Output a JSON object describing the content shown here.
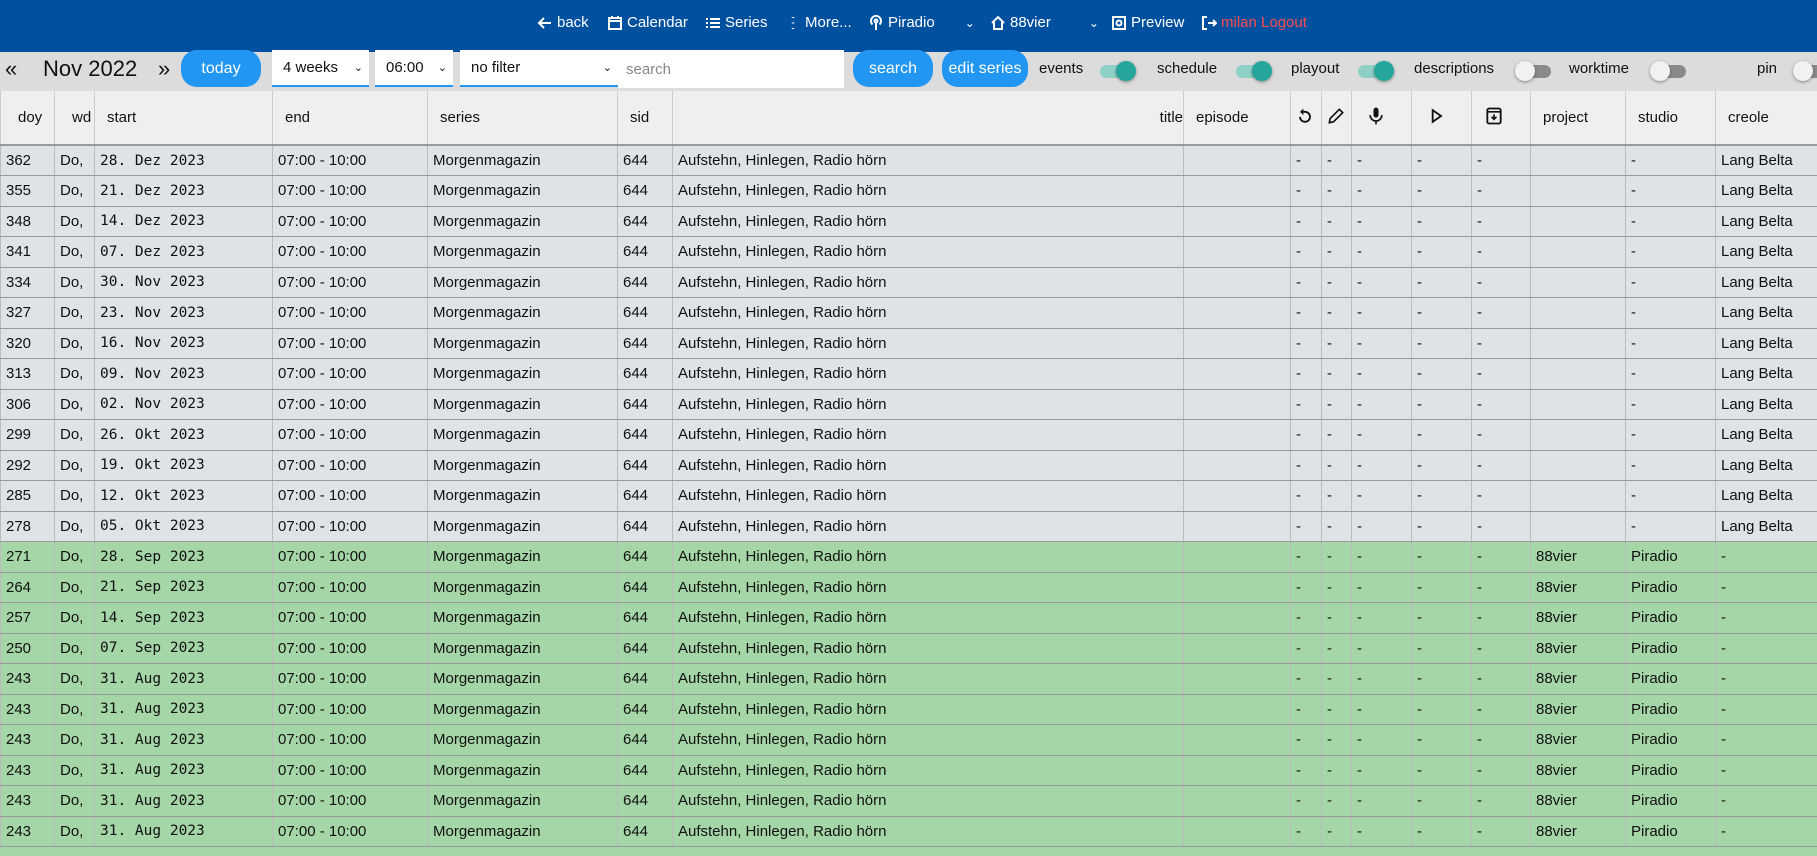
{
  "topnav": {
    "back": "back",
    "calendar": "Calendar",
    "series": "Series",
    "more": "More...",
    "station": "Piradio",
    "project": "88vier",
    "preview": "Preview",
    "logout": "milan Logout"
  },
  "toolbar": {
    "prev": "«",
    "month": "Nov 2022",
    "next": "»",
    "today": "today",
    "range": "4 weeks",
    "time": "06:00",
    "filter": "no filter",
    "search_placeholder": "search",
    "search": "search",
    "edit_series": "edit series",
    "toggles": [
      {
        "label": "events",
        "on": true
      },
      {
        "label": "schedule",
        "on": true
      },
      {
        "label": "playout",
        "on": true
      },
      {
        "label": "descriptions",
        "on": false
      },
      {
        "label": "worktime",
        "on": false
      },
      {
        "label": "pin",
        "on": false
      }
    ]
  },
  "columns": {
    "doy": "doy",
    "wd": "wd",
    "start": "start",
    "end": "end",
    "series": "series",
    "sid": "sid",
    "title": "title",
    "episode": "episode",
    "project": "project",
    "studio": "studio",
    "creole": "creole"
  },
  "icons": [
    "rerun-icon",
    "edit-icon",
    "mic-icon",
    "play-icon",
    "archive-icon"
  ],
  "colors": {
    "topbar": "#0050a0",
    "accent": "#2196f3",
    "toggle_on": "#26a69a",
    "row_past": "#dde3e6",
    "row_future": "#a5d6a7",
    "logout": "#ff4d4d"
  },
  "rows": [
    {
      "doy": "362",
      "wd": "Do,",
      "start": "28. Dez 2023",
      "end": "07:00 - 10:00",
      "series": "Morgenmagazin",
      "sid": "644",
      "title": "Aufstehn, Hinlegen, Radio hörn",
      "episode": "",
      "flags": [
        "-",
        "-",
        "-",
        "-",
        "-"
      ],
      "project": "",
      "studio": "-",
      "creole": "Lang Belta",
      "state": "grey"
    },
    {
      "doy": "355",
      "wd": "Do,",
      "start": "21. Dez 2023",
      "end": "07:00 - 10:00",
      "series": "Morgenmagazin",
      "sid": "644",
      "title": "Aufstehn, Hinlegen, Radio hörn",
      "episode": "",
      "flags": [
        "-",
        "-",
        "-",
        "-",
        "-"
      ],
      "project": "",
      "studio": "-",
      "creole": "Lang Belta",
      "state": "grey"
    },
    {
      "doy": "348",
      "wd": "Do,",
      "start": "14. Dez 2023",
      "end": "07:00 - 10:00",
      "series": "Morgenmagazin",
      "sid": "644",
      "title": "Aufstehn, Hinlegen, Radio hörn",
      "episode": "",
      "flags": [
        "-",
        "-",
        "-",
        "-",
        "-"
      ],
      "project": "",
      "studio": "-",
      "creole": "Lang Belta",
      "state": "grey"
    },
    {
      "doy": "341",
      "wd": "Do,",
      "start": "07. Dez 2023",
      "end": "07:00 - 10:00",
      "series": "Morgenmagazin",
      "sid": "644",
      "title": "Aufstehn, Hinlegen, Radio hörn",
      "episode": "",
      "flags": [
        "-",
        "-",
        "-",
        "-",
        "-"
      ],
      "project": "",
      "studio": "-",
      "creole": "Lang Belta",
      "state": "grey"
    },
    {
      "doy": "334",
      "wd": "Do,",
      "start": "30. Nov 2023",
      "end": "07:00 - 10:00",
      "series": "Morgenmagazin",
      "sid": "644",
      "title": "Aufstehn, Hinlegen, Radio hörn",
      "episode": "",
      "flags": [
        "-",
        "-",
        "-",
        "-",
        "-"
      ],
      "project": "",
      "studio": "-",
      "creole": "Lang Belta",
      "state": "grey"
    },
    {
      "doy": "327",
      "wd": "Do,",
      "start": "23. Nov 2023",
      "end": "07:00 - 10:00",
      "series": "Morgenmagazin",
      "sid": "644",
      "title": "Aufstehn, Hinlegen, Radio hörn",
      "episode": "",
      "flags": [
        "-",
        "-",
        "-",
        "-",
        "-"
      ],
      "project": "",
      "studio": "-",
      "creole": "Lang Belta",
      "state": "grey"
    },
    {
      "doy": "320",
      "wd": "Do,",
      "start": "16. Nov 2023",
      "end": "07:00 - 10:00",
      "series": "Morgenmagazin",
      "sid": "644",
      "title": "Aufstehn, Hinlegen, Radio hörn",
      "episode": "",
      "flags": [
        "-",
        "-",
        "-",
        "-",
        "-"
      ],
      "project": "",
      "studio": "-",
      "creole": "Lang Belta",
      "state": "grey"
    },
    {
      "doy": "313",
      "wd": "Do,",
      "start": "09. Nov 2023",
      "end": "07:00 - 10:00",
      "series": "Morgenmagazin",
      "sid": "644",
      "title": "Aufstehn, Hinlegen, Radio hörn",
      "episode": "",
      "flags": [
        "-",
        "-",
        "-",
        "-",
        "-"
      ],
      "project": "",
      "studio": "-",
      "creole": "Lang Belta",
      "state": "grey"
    },
    {
      "doy": "306",
      "wd": "Do,",
      "start": "02. Nov 2023",
      "end": "07:00 - 10:00",
      "series": "Morgenmagazin",
      "sid": "644",
      "title": "Aufstehn, Hinlegen, Radio hörn",
      "episode": "",
      "flags": [
        "-",
        "-",
        "-",
        "-",
        "-"
      ],
      "project": "",
      "studio": "-",
      "creole": "Lang Belta",
      "state": "grey"
    },
    {
      "doy": "299",
      "wd": "Do,",
      "start": "26. Okt 2023",
      "end": "07:00 - 10:00",
      "series": "Morgenmagazin",
      "sid": "644",
      "title": "Aufstehn, Hinlegen, Radio hörn",
      "episode": "",
      "flags": [
        "-",
        "-",
        "-",
        "-",
        "-"
      ],
      "project": "",
      "studio": "-",
      "creole": "Lang Belta",
      "state": "grey"
    },
    {
      "doy": "292",
      "wd": "Do,",
      "start": "19. Okt 2023",
      "end": "07:00 - 10:00",
      "series": "Morgenmagazin",
      "sid": "644",
      "title": "Aufstehn, Hinlegen, Radio hörn",
      "episode": "",
      "flags": [
        "-",
        "-",
        "-",
        "-",
        "-"
      ],
      "project": "",
      "studio": "-",
      "creole": "Lang Belta",
      "state": "grey"
    },
    {
      "doy": "285",
      "wd": "Do,",
      "start": "12. Okt 2023",
      "end": "07:00 - 10:00",
      "series": "Morgenmagazin",
      "sid": "644",
      "title": "Aufstehn, Hinlegen, Radio hörn",
      "episode": "",
      "flags": [
        "-",
        "-",
        "-",
        "-",
        "-"
      ],
      "project": "",
      "studio": "-",
      "creole": "Lang Belta",
      "state": "grey"
    },
    {
      "doy": "278",
      "wd": "Do,",
      "start": "05. Okt 2023",
      "end": "07:00 - 10:00",
      "series": "Morgenmagazin",
      "sid": "644",
      "title": "Aufstehn, Hinlegen, Radio hörn",
      "episode": "",
      "flags": [
        "-",
        "-",
        "-",
        "-",
        "-"
      ],
      "project": "",
      "studio": "-",
      "creole": "Lang Belta",
      "state": "grey"
    },
    {
      "doy": "271",
      "wd": "Do,",
      "start": "28. Sep 2023",
      "end": "07:00 - 10:00",
      "series": "Morgenmagazin",
      "sid": "644",
      "title": "Aufstehn, Hinlegen, Radio hörn",
      "episode": "",
      "flags": [
        "-",
        "-",
        "-",
        "-",
        "-"
      ],
      "project": "88vier",
      "studio": "Piradio",
      "creole": "-",
      "state": "green"
    },
    {
      "doy": "264",
      "wd": "Do,",
      "start": "21. Sep 2023",
      "end": "07:00 - 10:00",
      "series": "Morgenmagazin",
      "sid": "644",
      "title": "Aufstehn, Hinlegen, Radio hörn",
      "episode": "",
      "flags": [
        "-",
        "-",
        "-",
        "-",
        "-"
      ],
      "project": "88vier",
      "studio": "Piradio",
      "creole": "-",
      "state": "green"
    },
    {
      "doy": "257",
      "wd": "Do,",
      "start": "14. Sep 2023",
      "end": "07:00 - 10:00",
      "series": "Morgenmagazin",
      "sid": "644",
      "title": "Aufstehn, Hinlegen, Radio hörn",
      "episode": "",
      "flags": [
        "-",
        "-",
        "-",
        "-",
        "-"
      ],
      "project": "88vier",
      "studio": "Piradio",
      "creole": "-",
      "state": "green"
    },
    {
      "doy": "250",
      "wd": "Do,",
      "start": "07. Sep 2023",
      "end": "07:00 - 10:00",
      "series": "Morgenmagazin",
      "sid": "644",
      "title": "Aufstehn, Hinlegen, Radio hörn",
      "episode": "",
      "flags": [
        "-",
        "-",
        "-",
        "-",
        "-"
      ],
      "project": "88vier",
      "studio": "Piradio",
      "creole": "-",
      "state": "green"
    },
    {
      "doy": "243",
      "wd": "Do,",
      "start": "31. Aug 2023",
      "end": "07:00 - 10:00",
      "series": "Morgenmagazin",
      "sid": "644",
      "title": "Aufstehn, Hinlegen, Radio hörn",
      "episode": "",
      "flags": [
        "-",
        "-",
        "-",
        "-",
        "-"
      ],
      "project": "88vier",
      "studio": "Piradio",
      "creole": "-",
      "state": "green"
    },
    {
      "doy": "243",
      "wd": "Do,",
      "start": "31. Aug 2023",
      "end": "07:00 - 10:00",
      "series": "Morgenmagazin",
      "sid": "644",
      "title": "Aufstehn, Hinlegen, Radio hörn",
      "episode": "",
      "flags": [
        "-",
        "-",
        "-",
        "-",
        "-"
      ],
      "project": "88vier",
      "studio": "Piradio",
      "creole": "-",
      "state": "green"
    },
    {
      "doy": "243",
      "wd": "Do,",
      "start": "31. Aug 2023",
      "end": "07:00 - 10:00",
      "series": "Morgenmagazin",
      "sid": "644",
      "title": "Aufstehn, Hinlegen, Radio hörn",
      "episode": "",
      "flags": [
        "-",
        "-",
        "-",
        "-",
        "-"
      ],
      "project": "88vier",
      "studio": "Piradio",
      "creole": "-",
      "state": "green"
    },
    {
      "doy": "243",
      "wd": "Do,",
      "start": "31. Aug 2023",
      "end": "07:00 - 10:00",
      "series": "Morgenmagazin",
      "sid": "644",
      "title": "Aufstehn, Hinlegen, Radio hörn",
      "episode": "",
      "flags": [
        "-",
        "-",
        "-",
        "-",
        "-"
      ],
      "project": "88vier",
      "studio": "Piradio",
      "creole": "-",
      "state": "green"
    },
    {
      "doy": "243",
      "wd": "Do,",
      "start": "31. Aug 2023",
      "end": "07:00 - 10:00",
      "series": "Morgenmagazin",
      "sid": "644",
      "title": "Aufstehn, Hinlegen, Radio hörn",
      "episode": "",
      "flags": [
        "-",
        "-",
        "-",
        "-",
        "-"
      ],
      "project": "88vier",
      "studio": "Piradio",
      "creole": "-",
      "state": "green"
    },
    {
      "doy": "243",
      "wd": "Do,",
      "start": "31. Aug 2023",
      "end": "07:00 - 10:00",
      "series": "Morgenmagazin",
      "sid": "644",
      "title": "Aufstehn, Hinlegen, Radio hörn",
      "episode": "",
      "flags": [
        "-",
        "-",
        "-",
        "-",
        "-"
      ],
      "project": "88vier",
      "studio": "Piradio",
      "creole": "-",
      "state": "green"
    }
  ]
}
